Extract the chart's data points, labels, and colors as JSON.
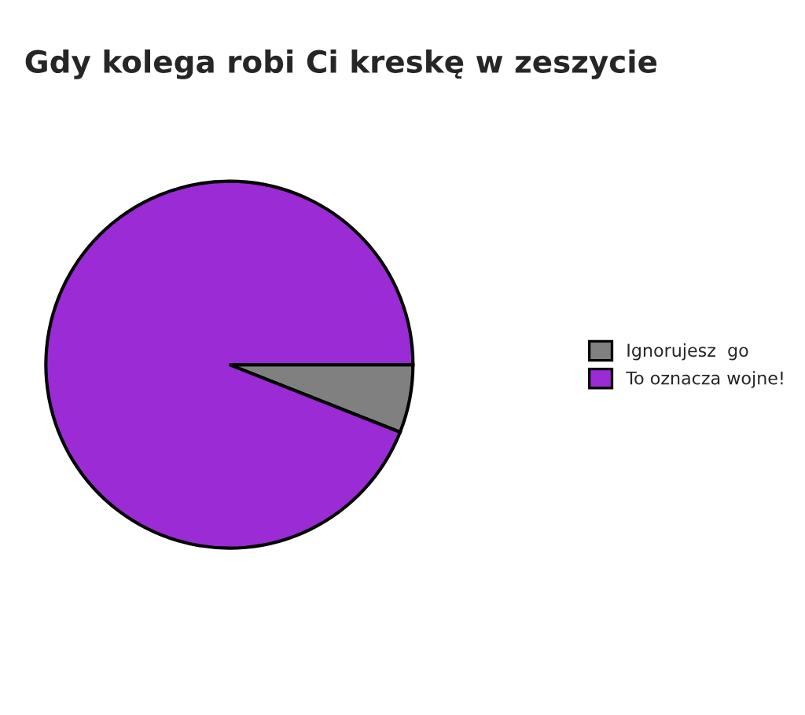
{
  "chart_data": {
    "type": "pie",
    "title": "Gdy kolega robi Ci kreskę w zeszycie",
    "categories": [
      "Ignorujesz  go",
      "To oznacza wojne!"
    ],
    "values": [
      6,
      94
    ],
    "colors": [
      "#808080",
      "#9b2bd4"
    ],
    "legend": "right"
  }
}
